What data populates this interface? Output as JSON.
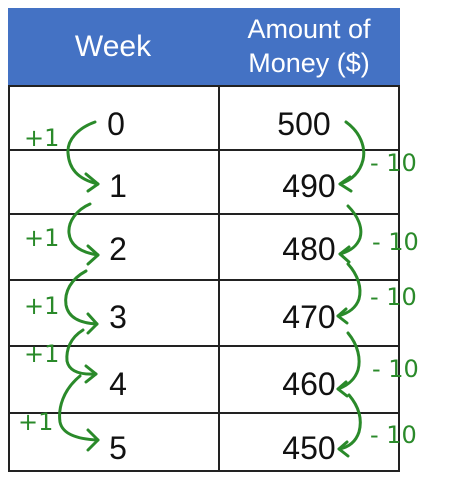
{
  "table": {
    "headers": {
      "week": "Week",
      "money_line1": "Amount of",
      "money_line2": "Money  ($)"
    },
    "rows": [
      {
        "week": "0",
        "money": "500"
      },
      {
        "week": "1",
        "money": "490"
      },
      {
        "week": "2",
        "money": "480"
      },
      {
        "week": "3",
        "money": "470"
      },
      {
        "week": "4",
        "money": "460"
      },
      {
        "week": "5",
        "money": "450"
      }
    ]
  },
  "annotations": {
    "left": [
      "+1",
      "+1",
      "+1",
      "+1",
      "+1"
    ],
    "right": [
      "- 10",
      "- 10",
      "- 10",
      "- 10",
      "- 10"
    ]
  },
  "colors": {
    "header_bg": "#4472c4",
    "header_text": "#ffffff",
    "ink": "#2a8a2a",
    "grid": "#222222"
  }
}
